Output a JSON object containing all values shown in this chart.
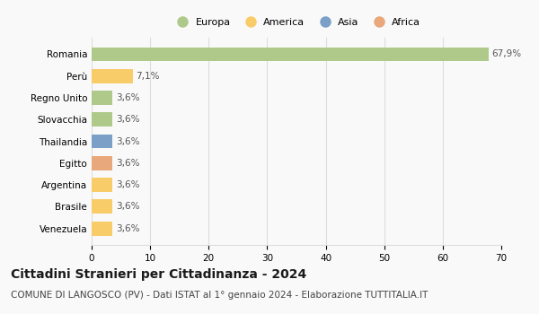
{
  "categories": [
    "Romania",
    "Perù",
    "Regno Unito",
    "Slovacchia",
    "Thailandia",
    "Egitto",
    "Argentina",
    "Brasile",
    "Venezuela"
  ],
  "values": [
    67.9,
    7.1,
    3.6,
    3.6,
    3.6,
    3.6,
    3.6,
    3.6,
    3.6
  ],
  "labels": [
    "67,9%",
    "7,1%",
    "3,6%",
    "3,6%",
    "3,6%",
    "3,6%",
    "3,6%",
    "3,6%",
    "3,6%"
  ],
  "colors": [
    "#aec98a",
    "#f9cc6a",
    "#aec98a",
    "#aec98a",
    "#7b9fc7",
    "#e8a87c",
    "#f9cc6a",
    "#f9cc6a",
    "#f9cc6a"
  ],
  "legend": [
    {
      "label": "Europa",
      "color": "#aec98a"
    },
    {
      "label": "America",
      "color": "#f9cc6a"
    },
    {
      "label": "Asia",
      "color": "#7b9fc7"
    },
    {
      "label": "Africa",
      "color": "#e8a87c"
    }
  ],
  "xlim": [
    0,
    70
  ],
  "xticks": [
    0,
    10,
    20,
    30,
    40,
    50,
    60,
    70
  ],
  "title": "Cittadini Stranieri per Cittadinanza - 2024",
  "subtitle": "COMUNE DI LANGOSCO (PV) - Dati ISTAT al 1° gennaio 2024 - Elaborazione TUTTITALIA.IT",
  "bg_color": "#f9f9f9",
  "grid_color": "#dddddd",
  "title_fontsize": 10,
  "subtitle_fontsize": 7.5,
  "label_fontsize": 7.5,
  "tick_fontsize": 7.5,
  "legend_fontsize": 8
}
